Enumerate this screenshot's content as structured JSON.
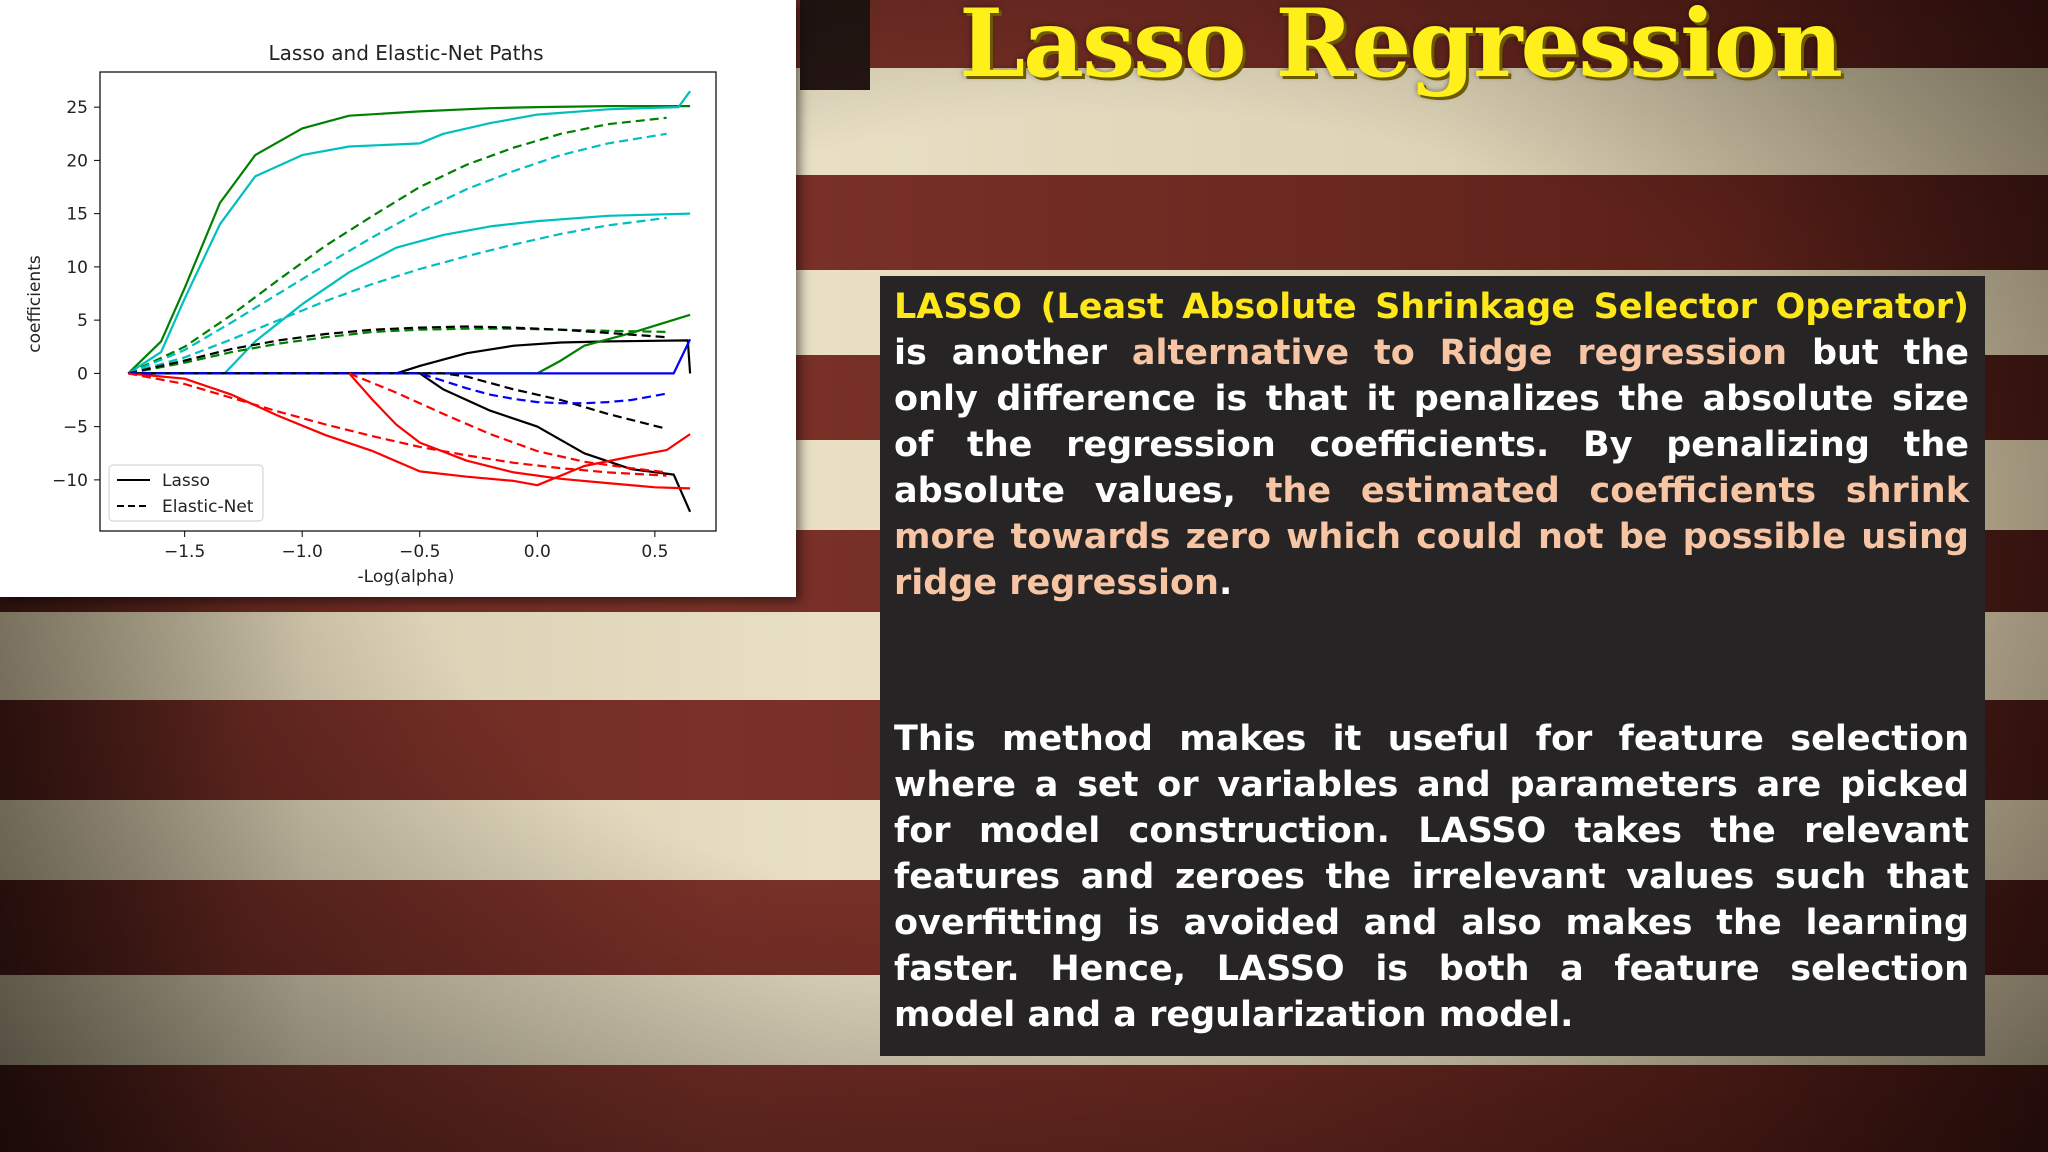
{
  "slide": {
    "title": "Lasso Regression"
  },
  "textbox": {
    "para1": {
      "term": "LASSO (Least Absolute Shrinkage Selector Operator)",
      "text_a": " is another ",
      "phrase_ridge": "alternative to Ridge regression",
      "text_b": " but the only difference is that it penalizes the absolute size of the regression coefficients. By penalizing the absolute values, ",
      "phrase_shrink": "the estimated coefficients shrink more towards zero which could not be possible using ridge regression",
      "text_end": "."
    },
    "para2": "This method makes it useful for feature selection where a set or variables and parameters are picked for model construction. LASSO takes the relevant features and zeroes the irrelevant values such that overfitting is avoided and also makes the learning faster. Hence, LASSO is both a feature selection model and a regularization model."
  },
  "colors": {
    "title": "#ffef1a",
    "highlight_yellow": "#ffe81a",
    "highlight_peach": "#f7c4a4",
    "textbox_bg": "#262424",
    "stripe_red": "#7a3128",
    "stripe_white": "#e8dfc4"
  },
  "chart_data": {
    "type": "line",
    "title": "Lasso and Elastic-Net Paths",
    "xlabel": "-Log(alpha)",
    "ylabel": "coefficients",
    "xlim": [
      -1.86,
      0.76
    ],
    "ylim": [
      -14.8,
      28.3
    ],
    "xticks": [
      -1.5,
      -1.0,
      -0.5,
      0.0,
      0.5
    ],
    "xtick_labels": [
      "−1.5",
      "−1.0",
      "−0.5",
      "0.0",
      "0.5"
    ],
    "yticks": [
      25,
      20,
      15,
      10,
      5,
      0,
      -5,
      -10
    ],
    "ytick_labels": [
      "25",
      "20",
      "15",
      "10",
      "5",
      "0",
      "−5",
      "−10"
    ],
    "grid": false,
    "legend": {
      "position": "lower-left",
      "entries": [
        {
          "label": "Lasso",
          "style": "solid"
        },
        {
          "label": "Elastic-Net",
          "style": "dashed"
        }
      ]
    },
    "series": [
      {
        "group": "Lasso",
        "color": "#008000",
        "style": "solid",
        "x": [
          -1.74,
          -1.6,
          -1.5,
          -1.35,
          -1.2,
          -1.0,
          -0.8,
          -0.5,
          -0.2,
          0.0,
          0.3,
          0.65
        ],
        "y": [
          0,
          3,
          8,
          16,
          20.5,
          23,
          24.2,
          24.6,
          24.9,
          25.0,
          25.1,
          25.1
        ]
      },
      {
        "group": "Lasso",
        "color": "#00bfbf",
        "style": "solid",
        "x": [
          -1.74,
          -1.6,
          -1.5,
          -1.35,
          -1.2,
          -1.0,
          -0.8,
          -0.5,
          -0.4,
          -0.2,
          0.0,
          0.3,
          0.6,
          0.65
        ],
        "y": [
          0,
          2,
          7,
          14,
          18.5,
          20.5,
          21.3,
          21.6,
          22.5,
          23.5,
          24.3,
          24.8,
          25.0,
          26.5
        ]
      },
      {
        "group": "Lasso",
        "color": "#00bfbf",
        "style": "solid",
        "x": [
          -1.33,
          -1.2,
          -1.0,
          -0.8,
          -0.6,
          -0.4,
          -0.2,
          0.0,
          0.3,
          0.65
        ],
        "y": [
          0,
          3,
          6.5,
          9.5,
          11.8,
          13.0,
          13.8,
          14.3,
          14.8,
          15.0
        ]
      },
      {
        "group": "Lasso",
        "color": "#000000",
        "style": "solid",
        "x": [
          -1.74,
          -0.6,
          -0.5,
          -0.3,
          -0.1,
          0.1,
          0.3,
          0.64,
          0.65
        ],
        "y": [
          0,
          0,
          0.7,
          1.9,
          2.6,
          2.9,
          3.0,
          3.1,
          0
        ]
      },
      {
        "group": "Lasso",
        "color": "#008000",
        "style": "solid",
        "x": [
          -1.74,
          0.0,
          0.1,
          0.2,
          0.4,
          0.65
        ],
        "y": [
          0,
          0,
          1.2,
          2.6,
          3.8,
          5.5
        ]
      },
      {
        "group": "Lasso",
        "color": "#0000ff",
        "style": "solid",
        "x": [
          -1.74,
          0.58,
          0.65
        ],
        "y": [
          0,
          0,
          3.2
        ]
      },
      {
        "group": "Lasso",
        "color": "#000000",
        "style": "solid",
        "x": [
          -1.74,
          -0.5,
          -0.4,
          -0.2,
          0.0,
          0.2,
          0.4,
          0.58,
          0.65
        ],
        "y": [
          0,
          0,
          -1.5,
          -3.5,
          -5,
          -7.5,
          -9,
          -9.5,
          -13
        ]
      },
      {
        "group": "Lasso",
        "color": "#ff0000",
        "style": "solid",
        "x": [
          -0.8,
          -0.7,
          -0.6,
          -0.5,
          -0.3,
          -0.1,
          0.1,
          0.3,
          0.5,
          0.65
        ],
        "y": [
          0,
          -2.5,
          -4.8,
          -6.5,
          -8.2,
          -9.3,
          -9.9,
          -10.3,
          -10.7,
          -10.8
        ]
      },
      {
        "group": "Lasso",
        "color": "#ff0000",
        "style": "solid",
        "x": [
          -1.74,
          -1.5,
          -1.3,
          -1.1,
          -0.9,
          -0.7,
          -0.5,
          -0.3,
          -0.1,
          0.0,
          0.2,
          0.4,
          0.55,
          0.65
        ],
        "y": [
          0,
          -0.5,
          -2,
          -4,
          -5.8,
          -7.3,
          -9.2,
          -9.7,
          -10.1,
          -10.5,
          -8.7,
          -7.8,
          -7.2,
          -5.7
        ]
      },
      {
        "group": "Elastic-Net",
        "color": "#008000",
        "style": "dashed",
        "x": [
          -1.74,
          -1.5,
          -1.3,
          -1.1,
          -0.9,
          -0.7,
          -0.5,
          -0.3,
          -0.1,
          0.1,
          0.3,
          0.55
        ],
        "y": [
          0,
          2.5,
          5.5,
          8.8,
          12,
          14.8,
          17.5,
          19.6,
          21.2,
          22.5,
          23.4,
          24.0
        ]
      },
      {
        "group": "Elastic-Net",
        "color": "#00bfbf",
        "style": "dashed",
        "x": [
          -1.74,
          -1.5,
          -1.3,
          -1.1,
          -0.9,
          -0.7,
          -0.5,
          -0.3,
          -0.1,
          0.1,
          0.3,
          0.55
        ],
        "y": [
          0,
          2.2,
          4.8,
          7.5,
          10.2,
          12.8,
          15.2,
          17.3,
          19,
          20.5,
          21.6,
          22.5
        ]
      },
      {
        "group": "Elastic-Net",
        "color": "#00bfbf",
        "style": "dashed",
        "x": [
          -1.74,
          -1.5,
          -1.3,
          -1.1,
          -0.9,
          -0.7,
          -0.5,
          -0.3,
          -0.1,
          0.1,
          0.3,
          0.55
        ],
        "y": [
          0,
          1.5,
          3.2,
          5,
          6.8,
          8.4,
          9.8,
          11,
          12.1,
          13.1,
          13.9,
          14.6
        ]
      },
      {
        "group": "Elastic-Net",
        "color": "#008000",
        "style": "dashed",
        "x": [
          -1.74,
          -1.5,
          -1.3,
          -1.1,
          -0.9,
          -0.7,
          -0.5,
          -0.3,
          -0.1,
          0.1,
          0.3,
          0.55
        ],
        "y": [
          0,
          1,
          2,
          2.8,
          3.4,
          3.9,
          4.1,
          4.2,
          4.2,
          4.1,
          4.0,
          3.9
        ]
      },
      {
        "group": "Elastic-Net",
        "color": "#000000",
        "style": "dashed",
        "x": [
          -1.74,
          -1.5,
          -1.3,
          -1.1,
          -0.9,
          -0.7,
          -0.5,
          -0.3,
          -0.1,
          0.1,
          0.3,
          0.55
        ],
        "y": [
          0,
          1.2,
          2.3,
          3.1,
          3.7,
          4.1,
          4.3,
          4.4,
          4.3,
          4.1,
          3.8,
          3.4
        ]
      },
      {
        "group": "Elastic-Net",
        "color": "#000000",
        "style": "dashed",
        "x": [
          -1.74,
          -0.4,
          -0.3,
          -0.1,
          0.1,
          0.3,
          0.55
        ],
        "y": [
          0,
          0,
          -0.3,
          -1.5,
          -2.5,
          -3.8,
          -5.2
        ]
      },
      {
        "group": "Elastic-Net",
        "color": "#0000ff",
        "style": "dashed",
        "x": [
          -1.74,
          -0.5,
          -0.4,
          -0.3,
          -0.2,
          -0.1,
          0.0,
          0.1,
          0.2,
          0.3,
          0.4,
          0.55
        ],
        "y": [
          0,
          0,
          -0.7,
          -1.4,
          -2.0,
          -2.4,
          -2.7,
          -2.8,
          -2.8,
          -2.7,
          -2.5,
          -1.9
        ]
      },
      {
        "group": "Elastic-Net",
        "color": "#ff0000",
        "style": "dashed",
        "x": [
          -1.74,
          -1.5,
          -1.3,
          -1.1,
          -0.9,
          -0.7,
          -0.5,
          -0.3,
          -0.1,
          0.1,
          0.3,
          0.55
        ],
        "y": [
          0,
          -1,
          -2.3,
          -3.6,
          -4.8,
          -5.9,
          -6.9,
          -7.7,
          -8.4,
          -8.9,
          -9.3,
          -9.6
        ]
      },
      {
        "group": "Elastic-Net",
        "color": "#ff0000",
        "style": "dashed",
        "x": [
          -0.8,
          -0.6,
          -0.4,
          -0.2,
          0.0,
          0.2,
          0.4,
          0.55
        ],
        "y": [
          0,
          -1.8,
          -3.8,
          -5.7,
          -7.3,
          -8.3,
          -8.9,
          -9.3
        ]
      }
    ]
  }
}
